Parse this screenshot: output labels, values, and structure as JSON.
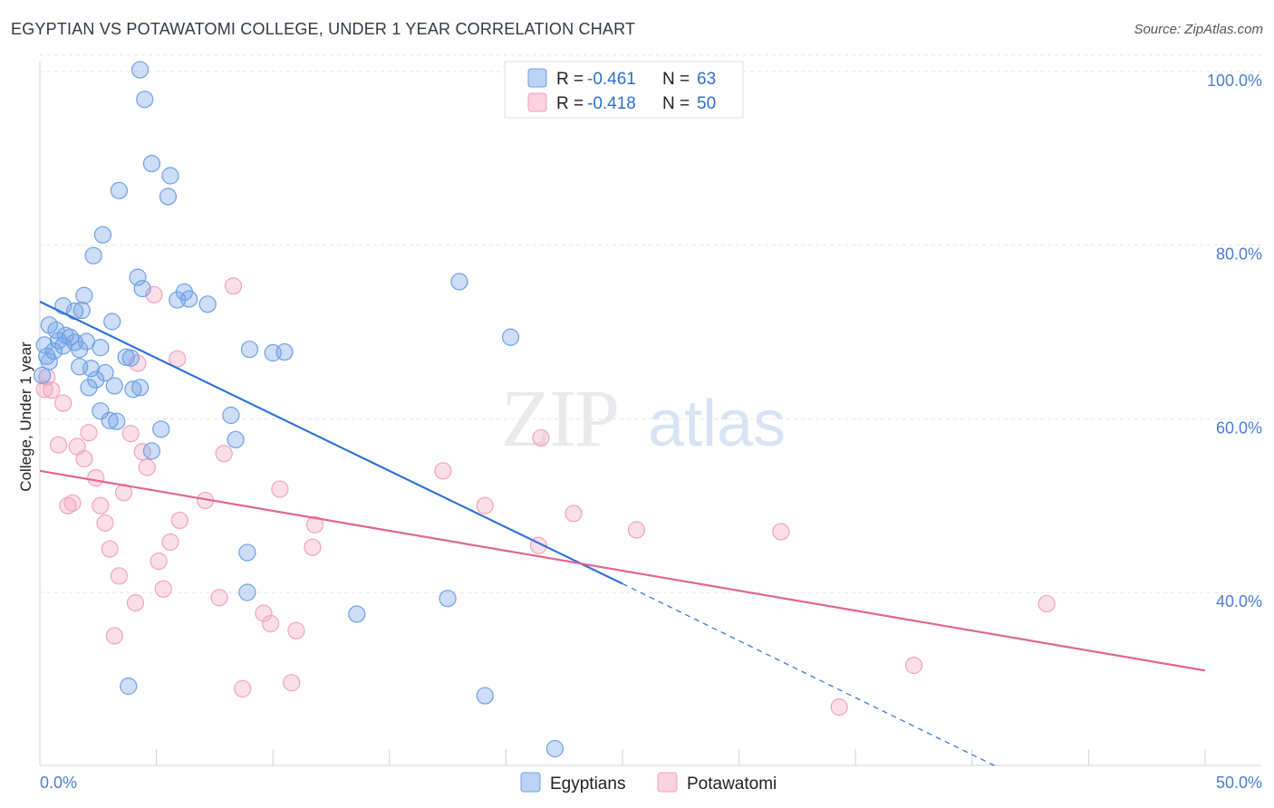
{
  "chart_data": {
    "type": "scatter",
    "title": "EGYPTIAN VS POTAWATOMI COLLEGE, UNDER 1 YEAR CORRELATION CHART",
    "source": "Source: ZipAtlas.com",
    "xlabel": "",
    "ylabel": "College, Under 1 year",
    "xlim": [
      0,
      50
    ],
    "ylim": [
      20,
      102
    ],
    "x_tick_labels": [
      "0.0%",
      "50.0%"
    ],
    "y_ticks": [
      40,
      60,
      80,
      100
    ],
    "y_tick_labels": [
      "40.0%",
      "60.0%",
      "80.0%",
      "100.0%"
    ],
    "watermark": "ZIPatlas",
    "colors": {
      "egyptians": "#6fa0e6",
      "egyptians_line": "#2f72d6",
      "potawatomi": "#f2a3bc",
      "potawatomi_line": "#e06692",
      "tick_text": "#4a7fd1",
      "grid": "#e3e6ea"
    },
    "legend": {
      "r_label": "R = ",
      "n_label": "N = ",
      "entries": [
        {
          "name": "Egyptians",
          "r": "-0.461",
          "n": "63"
        },
        {
          "name": "Potawatomi",
          "r": "-0.418",
          "n": "50"
        }
      ]
    },
    "series": [
      {
        "name": "Egyptians",
        "trend": {
          "x0": 0,
          "y0": 73.5,
          "x1": 25,
          "y1": 41.0,
          "dash_x1": 41.0,
          "dash_y1": 20.0
        },
        "points": [
          [
            4.3,
            100.2
          ],
          [
            4.5,
            96.8
          ],
          [
            4.8,
            89.4
          ],
          [
            5.6,
            88.0
          ],
          [
            5.5,
            85.6
          ],
          [
            3.4,
            86.3
          ],
          [
            2.7,
            81.2
          ],
          [
            2.3,
            78.8
          ],
          [
            4.2,
            76.3
          ],
          [
            4.4,
            75.0
          ],
          [
            6.2,
            74.6
          ],
          [
            6.4,
            73.8
          ],
          [
            7.2,
            73.2
          ],
          [
            5.9,
            73.7
          ],
          [
            1.9,
            74.2
          ],
          [
            1.0,
            73.0
          ],
          [
            1.8,
            72.5
          ],
          [
            1.5,
            72.4
          ],
          [
            3.1,
            71.2
          ],
          [
            0.4,
            70.8
          ],
          [
            0.7,
            70.2
          ],
          [
            1.1,
            69.6
          ],
          [
            1.3,
            69.4
          ],
          [
            0.8,
            69.0
          ],
          [
            2.0,
            68.9
          ],
          [
            1.5,
            68.8
          ],
          [
            1.0,
            68.4
          ],
          [
            1.7,
            68.0
          ],
          [
            0.6,
            67.8
          ],
          [
            0.3,
            67.2
          ],
          [
            0.4,
            66.6
          ],
          [
            2.6,
            68.2
          ],
          [
            3.7,
            67.1
          ],
          [
            3.9,
            67.0
          ],
          [
            1.7,
            66.0
          ],
          [
            2.2,
            65.8
          ],
          [
            2.8,
            65.3
          ],
          [
            2.4,
            64.5
          ],
          [
            2.1,
            63.6
          ],
          [
            3.2,
            63.8
          ],
          [
            4.0,
            63.4
          ],
          [
            4.3,
            63.6
          ],
          [
            2.6,
            60.9
          ],
          [
            3.0,
            59.8
          ],
          [
            3.3,
            59.7
          ],
          [
            5.2,
            58.8
          ],
          [
            8.2,
            60.4
          ],
          [
            8.4,
            57.6
          ],
          [
            9.0,
            68.0
          ],
          [
            10.0,
            67.6
          ],
          [
            10.5,
            67.7
          ],
          [
            18.0,
            75.8
          ],
          [
            20.2,
            69.4
          ],
          [
            4.8,
            56.3
          ],
          [
            8.9,
            44.6
          ],
          [
            8.9,
            40.0
          ],
          [
            13.6,
            37.5
          ],
          [
            17.5,
            39.3
          ],
          [
            3.8,
            29.2
          ],
          [
            19.1,
            28.1
          ],
          [
            22.1,
            22.0
          ],
          [
            0.1,
            65.0
          ],
          [
            0.2,
            68.5
          ]
        ]
      },
      {
        "name": "Potawatomi",
        "trend": {
          "x0": 0,
          "y0": 54.0,
          "x1": 50,
          "y1": 31.0
        },
        "points": [
          [
            8.3,
            75.3
          ],
          [
            4.9,
            74.3
          ],
          [
            5.9,
            66.9
          ],
          [
            4.2,
            66.4
          ],
          [
            0.2,
            63.4
          ],
          [
            0.5,
            63.3
          ],
          [
            1.0,
            61.8
          ],
          [
            0.8,
            57.0
          ],
          [
            1.6,
            56.8
          ],
          [
            2.1,
            58.4
          ],
          [
            3.9,
            58.3
          ],
          [
            4.4,
            56.2
          ],
          [
            7.9,
            56.0
          ],
          [
            1.9,
            55.4
          ],
          [
            4.6,
            54.4
          ],
          [
            2.4,
            53.2
          ],
          [
            3.6,
            51.5
          ],
          [
            10.3,
            51.9
          ],
          [
            17.3,
            54.0
          ],
          [
            21.5,
            57.8
          ],
          [
            1.4,
            50.3
          ],
          [
            1.2,
            50.0
          ],
          [
            2.6,
            50.0
          ],
          [
            7.1,
            50.6
          ],
          [
            19.1,
            50.0
          ],
          [
            22.9,
            49.1
          ],
          [
            2.8,
            48.0
          ],
          [
            6.0,
            48.3
          ],
          [
            11.8,
            47.8
          ],
          [
            25.6,
            47.2
          ],
          [
            31.8,
            47.0
          ],
          [
            5.6,
            45.8
          ],
          [
            3.0,
            45.0
          ],
          [
            11.7,
            45.2
          ],
          [
            21.4,
            45.4
          ],
          [
            5.1,
            43.6
          ],
          [
            3.4,
            41.9
          ],
          [
            5.3,
            40.4
          ],
          [
            4.1,
            38.8
          ],
          [
            7.7,
            39.4
          ],
          [
            9.6,
            37.6
          ],
          [
            9.9,
            36.4
          ],
          [
            11.0,
            35.6
          ],
          [
            3.2,
            35.0
          ],
          [
            8.7,
            28.9
          ],
          [
            10.8,
            29.6
          ],
          [
            43.2,
            38.7
          ],
          [
            37.5,
            31.6
          ],
          [
            34.3,
            26.8
          ],
          [
            0.3,
            64.8
          ]
        ]
      }
    ]
  }
}
